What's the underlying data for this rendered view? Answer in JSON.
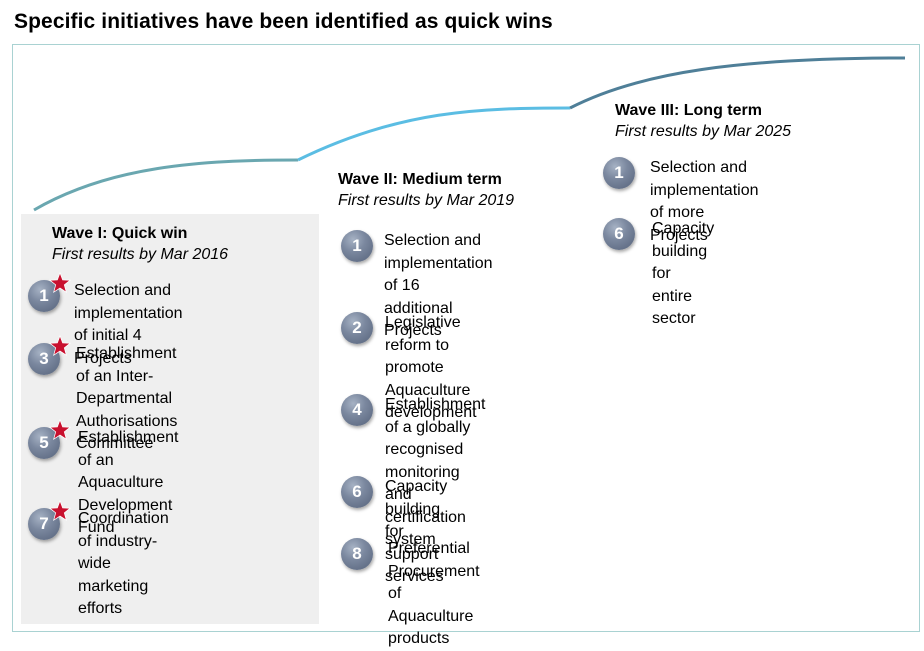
{
  "title": "Specific initiatives have been identified as quick wins",
  "waves": [
    {
      "title": "Wave I:  Quick win",
      "subtitle": "First results by Mar 2016",
      "items": [
        {
          "num": "1",
          "star": true,
          "text": "Selection and implementation\nof initial 4 Projects"
        },
        {
          "num": "3",
          "star": true,
          "text": "Establishment of an Inter-\nDepartmental\nAuthorisations Committee"
        },
        {
          "num": "5",
          "star": true,
          "text": "Establishment of an\nAquaculture Development\nFund"
        },
        {
          "num": "7",
          "star": true,
          "text": "Coordination of industry-\nwide marketing efforts"
        }
      ]
    },
    {
      "title": "Wave II:  Medium term",
      "subtitle": "First results by Mar 2019",
      "items": [
        {
          "num": "1",
          "star": false,
          "text": "Selection and\nimplementation of 16\nadditional Projects"
        },
        {
          "num": "2",
          "star": false,
          "text": "Legislative reform to\npromote Aquaculture\ndevelopment"
        },
        {
          "num": "4",
          "star": false,
          "text": "Establishment of a globally\nrecognised monitoring and\ncertification system"
        },
        {
          "num": "6",
          "star": false,
          "text": "Capacity building for\nsupport services"
        },
        {
          "num": "8",
          "star": false,
          "text": "Preferential Procurement\nof Aquaculture products"
        }
      ]
    },
    {
      "title": "Wave III:  Long term",
      "subtitle": "First results by Mar 2025",
      "items": [
        {
          "num": "1",
          "star": false,
          "text": "Selection and implementation\nof more Projects"
        },
        {
          "num": "6",
          "star": false,
          "text": "Capacity building for entire\nsector"
        }
      ]
    }
  ],
  "colors": {
    "curve1": "#6aa7b0",
    "curve2": "#5bbde3",
    "curve3": "#4f7f98",
    "star": "#c8102e",
    "badge": "#6f7d95",
    "frame": "#a9d2d2",
    "panel": "#efefef"
  }
}
